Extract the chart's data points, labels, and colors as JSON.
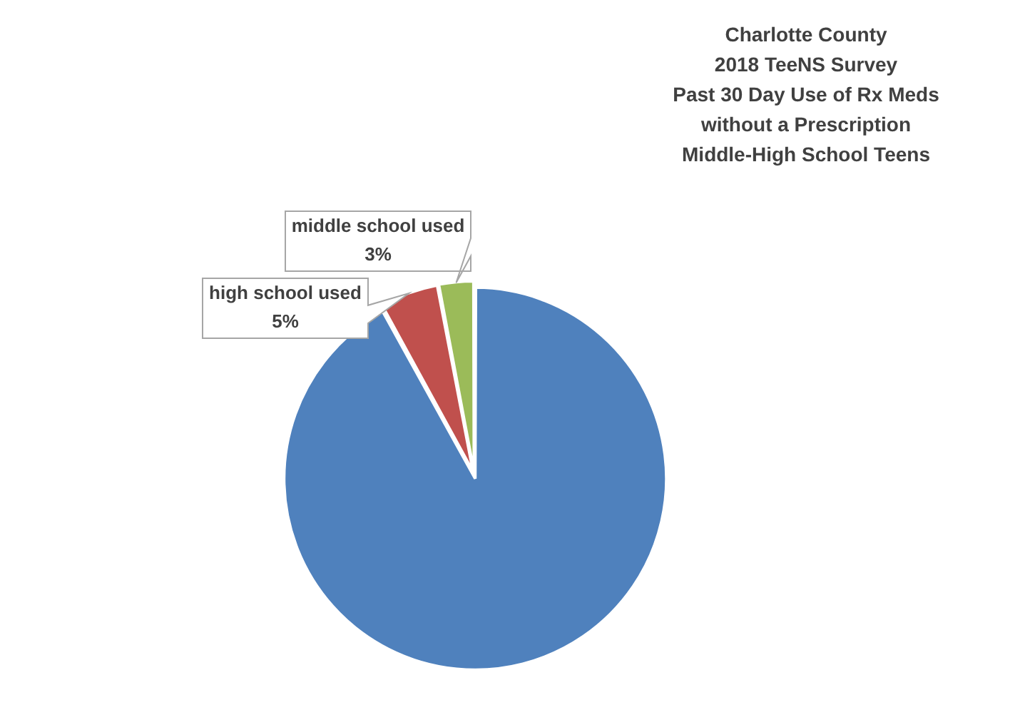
{
  "chart_data": {
    "type": "pie",
    "title": "Charlotte County\n2018 TeeNS Survey\nPast 30 Day Use of Rx Meds\nwithout a Prescription\nMiddle-High School Teens",
    "categories": [
      null,
      "high school used",
      "middle school used"
    ],
    "values": [
      92,
      5,
      3
    ],
    "colors": [
      "#4f81bd",
      "#c0504d",
      "#9bbb59"
    ],
    "value_labels": [
      null,
      "5%",
      "3%"
    ],
    "legend": false
  }
}
